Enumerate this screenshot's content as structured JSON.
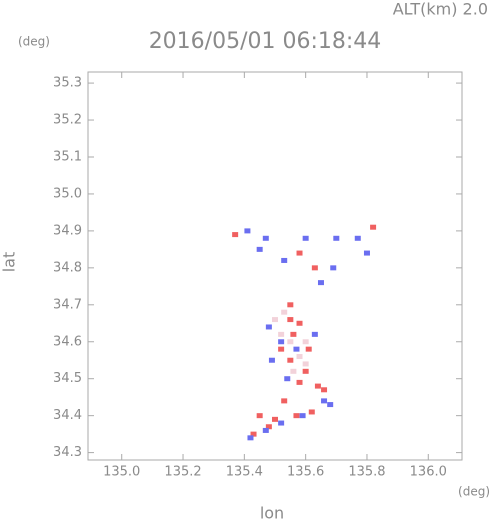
{
  "chart_data": {
    "type": "scatter",
    "title": "2016/05/01 06:18:44",
    "annotation": "ALT(km) 2.0",
    "y_unit": "(deg)",
    "x_unit": "(deg)",
    "xlabel": "lon",
    "ylabel": "lat",
    "xlim": [
      134.89,
      136.11
    ],
    "ylim": [
      34.28,
      35.33
    ],
    "xticks": [
      {
        "value": 135.0,
        "label": "135.0"
      },
      135.2,
      135.4,
      135.6,
      135.8,
      {
        "value": 136.0,
        "label": "136.0"
      }
    ],
    "yticks": [
      34.3,
      34.4,
      34.5,
      34.6,
      34.7,
      34.8,
      34.9,
      {
        "value": 35.0,
        "label": "35.0"
      },
      35.1,
      35.2,
      35.3
    ],
    "series": [
      {
        "color": "#f06060",
        "x": [
          135.37,
          135.58,
          135.63,
          135.82,
          135.55,
          135.58,
          135.56,
          135.52,
          135.55,
          135.6,
          135.58,
          135.66,
          135.45,
          135.5,
          135.57,
          135.62,
          135.43,
          135.48,
          135.53,
          135.61,
          135.64,
          135.55
        ],
        "values": [
          34.89,
          34.84,
          34.8,
          34.91,
          34.66,
          34.65,
          34.62,
          34.58,
          34.55,
          34.52,
          34.49,
          34.47,
          34.4,
          34.39,
          34.4,
          34.41,
          34.35,
          34.37,
          34.44,
          34.58,
          34.48,
          34.7
        ]
      },
      {
        "color": "#6a6ef0",
        "x": [
          135.41,
          135.45,
          135.53,
          135.69,
          135.8,
          135.77,
          135.48,
          135.52,
          135.57,
          135.49,
          135.54,
          135.63,
          135.66,
          135.68,
          135.59,
          135.52,
          135.47,
          135.42,
          135.7,
          135.6,
          135.47,
          135.65
        ],
        "values": [
          34.9,
          34.85,
          34.82,
          34.8,
          34.84,
          34.88,
          34.64,
          34.6,
          34.58,
          34.55,
          34.5,
          34.62,
          34.44,
          34.43,
          34.4,
          34.38,
          34.36,
          34.34,
          34.88,
          34.88,
          34.88,
          34.76
        ]
      },
      {
        "color": "#f2d2da",
        "x": [
          135.52,
          135.55,
          135.58,
          135.5,
          135.53,
          135.6,
          135.56,
          135.6
        ],
        "values": [
          34.62,
          34.6,
          34.56,
          34.66,
          34.68,
          34.6,
          34.52,
          34.54
        ]
      }
    ]
  }
}
